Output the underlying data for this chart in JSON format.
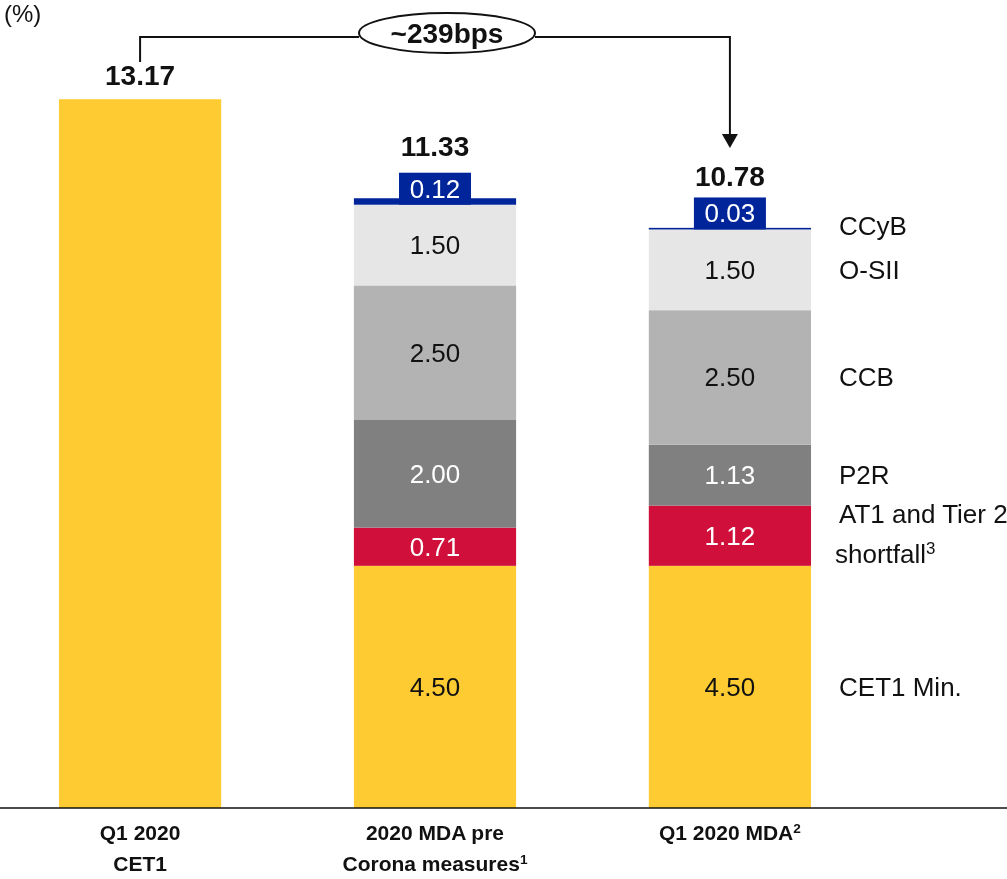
{
  "chart_data": {
    "type": "bar",
    "stacked": true,
    "ylabel": "(%)",
    "categories": [
      "Q1 2020\nCET1",
      "2020 MDA pre\nCorona measures$^{1}$",
      "Q1 2020 MDA$^{2}$"
    ],
    "series": [
      {
        "color": "#ffcb32",
        "values": [
          13.17,
          null,
          null
        ],
        "value_labels": [
          null,
          null,
          null
        ]
      },
      {
        "name": "CET1 Min.",
        "color": "#ffcb32",
        "values": [
          null,
          4.5,
          4.5
        ],
        "value_labels": [
          null,
          "4.50",
          "4.50"
        ]
      },
      {
        "name": "AT1 and Tier 2 shortfall$^{3}$",
        "color": "#d0103a",
        "values": [
          null,
          0.71,
          1.12
        ],
        "value_labels": [
          null,
          "0.71",
          "1.12"
        ]
      },
      {
        "name": "P2R",
        "color": "#808080",
        "values": [
          null,
          2.0,
          1.13
        ],
        "value_labels": [
          null,
          "2.00",
          "1.13"
        ]
      },
      {
        "name": "CCB",
        "color": "#b3b3b3",
        "values": [
          null,
          2.5,
          2.5
        ],
        "value_labels": [
          null,
          "2.50",
          "2.50"
        ]
      },
      {
        "name": "O-SII",
        "color": "#e6e6e6",
        "values": [
          null,
          1.5,
          1.5
        ],
        "value_labels": [
          null,
          "1.50",
          "1.50"
        ]
      },
      {
        "name": "CCyB",
        "color": "#00259a",
        "values": [
          null,
          0.12,
          0.03
        ],
        "value_labels": [
          null,
          "0.12",
          "0.03"
        ]
      }
    ],
    "totals": [
      "13.17",
      "11.33",
      "10.78"
    ],
    "legend": "right",
    "annotations": [
      "~239bps"
    ]
  }
}
